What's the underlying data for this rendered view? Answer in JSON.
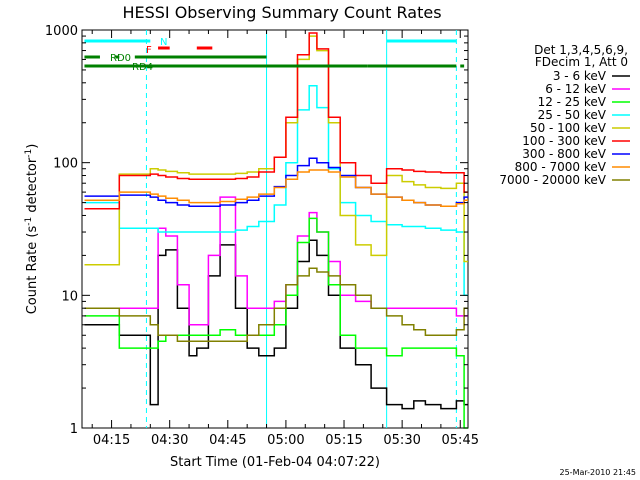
{
  "chart_data": {
    "type": "line",
    "title": "HESSI Observing Summary Count Rates",
    "xlabel": "Start Time (01-Feb-04 04:07:22)",
    "ylabel_main": "Count Rate (s",
    "ylabel_sup1": "-1",
    "ylabel_mid": " detector",
    "ylabel_sup2": "-1",
    "ylabel_end": ")",
    "y_scale": "log",
    "ylim": [
      1,
      1000
    ],
    "xlim": [
      "04:07:22",
      "05:47:00"
    ],
    "x_ticks": [
      "04:15",
      "04:30",
      "04:45",
      "05:00",
      "05:15",
      "05:30",
      "05:45"
    ],
    "y_ticks": [
      "1",
      "10",
      "100",
      "1000"
    ],
    "footer_stamp": "25-Mar-2010 21:45",
    "legend_header": [
      "Det 1,3,4,5,6,9,",
      "FDecim 1, Att 0"
    ],
    "legend_placement": "right, outside plot",
    "series": [
      {
        "name": "3 - 6 keV",
        "color": "#000000",
        "t": [
          "04:08",
          "04:14",
          "04:17",
          "04:25",
          "04:27",
          "04:29",
          "04:32",
          "04:35",
          "04:37",
          "04:40",
          "04:43",
          "04:47",
          "04:50",
          "04:53",
          "04:57",
          "05:00",
          "05:03",
          "05:06",
          "05:08",
          "05:11",
          "05:14",
          "05:18",
          "05:22",
          "05:26",
          "05:30",
          "05:33",
          "05:36",
          "05:40",
          "05:44",
          "05:46"
        ],
        "v": [
          6,
          6,
          5,
          1.5,
          20,
          22,
          8,
          3.5,
          4,
          14,
          24,
          8,
          4,
          3.5,
          4,
          8,
          18,
          26,
          20,
          10,
          4,
          3,
          2,
          1.5,
          1.4,
          1.6,
          1.5,
          1.4,
          1.6,
          1.5
        ]
      },
      {
        "name": "6 - 12 keV",
        "color": "#ff00ff",
        "t": [
          "04:08",
          "04:14",
          "04:17",
          "04:25",
          "04:27",
          "04:29",
          "04:32",
          "04:35",
          "04:37",
          "04:40",
          "04:43",
          "04:47",
          "04:50",
          "04:53",
          "04:57",
          "05:00",
          "05:03",
          "05:06",
          "05:08",
          "05:11",
          "05:14",
          "05:18",
          "05:22",
          "05:26",
          "05:30",
          "05:33",
          "05:36",
          "05:40",
          "05:44",
          "05:46"
        ],
        "v": [
          8,
          8,
          8,
          8,
          32,
          28,
          12,
          6,
          6,
          20,
          55,
          14,
          8,
          8,
          9,
          12,
          28,
          42,
          30,
          18,
          10,
          9,
          8,
          8,
          8,
          8,
          8,
          8,
          7,
          7
        ]
      },
      {
        "name": "12 - 25 keV",
        "color": "#00ff00",
        "t": [
          "04:08",
          "04:14",
          "04:17",
          "04:25",
          "04:27",
          "04:29",
          "04:32",
          "04:35",
          "04:37",
          "04:40",
          "04:43",
          "04:47",
          "04:50",
          "04:53",
          "04:57",
          "05:00",
          "05:03",
          "05:06",
          "05:08",
          "05:11",
          "05:14",
          "05:18",
          "05:22",
          "05:26",
          "05:30",
          "05:33",
          "05:36",
          "05:40",
          "05:44",
          "05:46"
        ],
        "v": [
          7,
          7,
          4,
          4,
          4.5,
          5,
          5,
          5,
          5,
          5,
          5.5,
          5,
          5,
          5,
          6,
          10,
          25,
          38,
          30,
          12,
          5,
          4,
          4,
          3.5,
          4,
          4,
          4,
          4,
          3.5,
          1
        ]
      },
      {
        "name": "25 - 50 keV",
        "color": "#00ffff",
        "t": [
          "04:08",
          "04:14",
          "04:17",
          "04:25",
          "04:27",
          "04:29",
          "04:32",
          "04:35",
          "04:37",
          "04:40",
          "04:43",
          "04:47",
          "04:50",
          "04:53",
          "04:57",
          "05:00",
          "05:03",
          "05:06",
          "05:08",
          "05:11",
          "05:14",
          "05:18",
          "05:22",
          "05:26",
          "05:30",
          "05:33",
          "05:36",
          "05:40",
          "05:44",
          "05:46"
        ],
        "v": [
          50,
          50,
          32,
          32,
          30,
          30,
          30,
          30,
          30,
          30,
          30,
          31,
          33,
          36,
          48,
          100,
          250,
          380,
          260,
          90,
          50,
          40,
          36,
          34,
          33,
          33,
          32,
          31,
          30,
          10
        ]
      },
      {
        "name": "50 - 100 keV",
        "color": "#cccc00",
        "t": [
          "04:08",
          "04:14",
          "04:17",
          "04:25",
          "04:27",
          "04:29",
          "04:32",
          "04:35",
          "04:37",
          "04:40",
          "04:43",
          "04:47",
          "04:50",
          "04:53",
          "04:57",
          "05:00",
          "05:03",
          "05:06",
          "05:08",
          "05:11",
          "05:14",
          "05:18",
          "05:22",
          "05:26",
          "05:30",
          "05:33",
          "05:36",
          "05:40",
          "05:44",
          "05:46"
        ],
        "v": [
          17,
          17,
          82,
          90,
          88,
          86,
          84,
          82,
          82,
          82,
          82,
          83,
          85,
          90,
          110,
          200,
          600,
          900,
          700,
          200,
          40,
          24,
          20,
          80,
          72,
          68,
          65,
          64,
          70,
          18
        ]
      },
      {
        "name": "100 - 300 keV",
        "color": "#ff0000",
        "t": [
          "04:08",
          "04:14",
          "04:17",
          "04:25",
          "04:27",
          "04:29",
          "04:32",
          "04:35",
          "04:37",
          "04:40",
          "04:43",
          "04:47",
          "04:50",
          "04:53",
          "04:57",
          "05:00",
          "05:03",
          "05:06",
          "05:08",
          "05:11",
          "05:14",
          "05:18",
          "05:22",
          "05:26",
          "05:30",
          "05:33",
          "05:36",
          "05:40",
          "05:44",
          "05:46"
        ],
        "v": [
          45,
          45,
          80,
          82,
          80,
          78,
          76,
          75,
          75,
          75,
          75,
          76,
          78,
          85,
          110,
          220,
          650,
          950,
          720,
          220,
          100,
          80,
          70,
          90,
          88,
          86,
          85,
          84,
          84,
          60
        ]
      },
      {
        "name": "300 - 800 keV",
        "color": "#0000ff",
        "t": [
          "04:08",
          "04:14",
          "04:17",
          "04:25",
          "04:27",
          "04:29",
          "04:32",
          "04:35",
          "04:37",
          "04:40",
          "04:43",
          "04:47",
          "04:50",
          "04:53",
          "04:57",
          "05:00",
          "05:03",
          "05:06",
          "05:08",
          "05:11",
          "05:14",
          "05:18",
          "05:22",
          "05:26",
          "05:30",
          "05:33",
          "05:36",
          "05:40",
          "05:44",
          "05:46"
        ],
        "v": [
          56,
          56,
          57,
          55,
          52,
          50,
          48,
          47,
          47,
          47,
          48,
          50,
          52,
          56,
          66,
          80,
          95,
          108,
          100,
          92,
          80,
          65,
          58,
          55,
          52,
          50,
          48,
          47,
          50,
          55
        ]
      },
      {
        "name": "800 - 7000 keV",
        "color": "#ff8c00",
        "t": [
          "04:08",
          "04:14",
          "04:17",
          "04:25",
          "04:27",
          "04:29",
          "04:32",
          "04:35",
          "04:37",
          "04:40",
          "04:43",
          "04:47",
          "04:50",
          "04:53",
          "04:57",
          "05:00",
          "05:03",
          "05:06",
          "05:08",
          "05:11",
          "05:14",
          "05:18",
          "05:22",
          "05:26",
          "05:30",
          "05:33",
          "05:36",
          "05:40",
          "05:44",
          "05:46"
        ],
        "v": [
          52,
          52,
          60,
          58,
          56,
          54,
          52,
          50,
          50,
          50,
          51,
          53,
          55,
          58,
          65,
          75,
          85,
          88,
          88,
          85,
          78,
          65,
          58,
          55,
          52,
          50,
          48,
          47,
          49,
          52
        ]
      },
      {
        "name": "7000 - 20000 keV",
        "color": "#808000",
        "t": [
          "04:08",
          "04:14",
          "04:17",
          "04:25",
          "04:27",
          "04:29",
          "04:32",
          "04:35",
          "04:37",
          "04:40",
          "04:43",
          "04:47",
          "04:50",
          "04:53",
          "04:57",
          "05:00",
          "05:03",
          "05:06",
          "05:08",
          "05:11",
          "05:14",
          "05:18",
          "05:22",
          "05:26",
          "05:30",
          "05:33",
          "05:36",
          "05:40",
          "05:44",
          "05:46"
        ],
        "v": [
          8,
          8,
          7,
          6,
          5,
          5,
          4.5,
          4.5,
          4.5,
          4.5,
          4.5,
          4.5,
          5,
          6,
          8,
          12,
          14,
          16,
          15,
          14,
          12,
          10,
          8,
          7,
          6,
          5.5,
          5,
          5,
          5.5,
          8
        ]
      }
    ],
    "bars": [
      {
        "label": "N",
        "color": "#00ffff",
        "segments": [
          [
            "04:08",
            "04:25"
          ],
          [
            "05:26",
            "05:44"
          ]
        ]
      },
      {
        "label": "F",
        "color": "#ff0000",
        "segments": [
          [
            "04:27",
            "04:30"
          ],
          [
            "04:37",
            "04:41"
          ]
        ]
      },
      {
        "label": "RD0",
        "color": "#008000",
        "segments": [
          [
            "04:08",
            "04:12"
          ],
          [
            "04:16",
            "04:17"
          ],
          [
            "04:21",
            "04:55"
          ]
        ]
      },
      {
        "label": "RD4",
        "color": "#008000",
        "segments": [
          [
            "04:08",
            "04:55"
          ],
          [
            "04:55",
            "05:21"
          ],
          [
            "05:21",
            "05:44"
          ],
          [
            "05:45",
            "05:46"
          ]
        ]
      }
    ],
    "vlines": [
      {
        "t": "04:24",
        "color": "#00ffff",
        "style": "dashed"
      },
      {
        "t": "04:55",
        "color": "#00ffff",
        "style": "solid"
      },
      {
        "t": "05:26",
        "color": "#00ffff",
        "style": "solid"
      },
      {
        "t": "05:44",
        "color": "#00ffff",
        "style": "dashed"
      }
    ]
  }
}
